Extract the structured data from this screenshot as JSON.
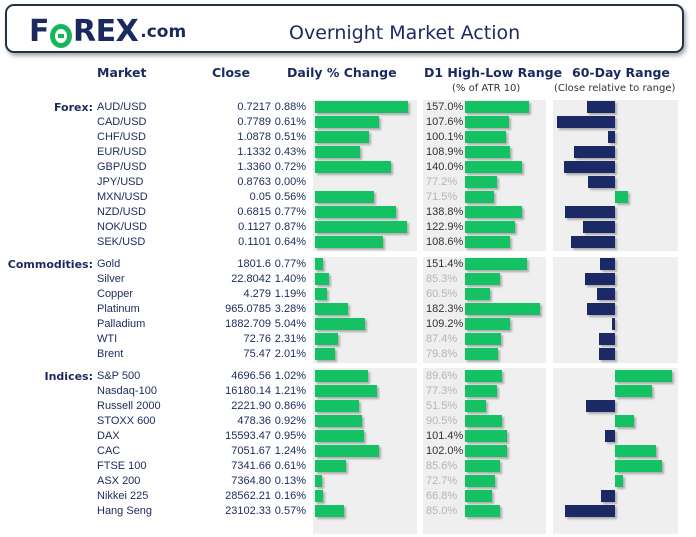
{
  "header": {
    "logo_text": "FOREX.com",
    "logo_main_f": "F",
    "logo_main_rest": "REX",
    "logo_suffix": ".com",
    "title": "Overnight Market Action"
  },
  "columns": {
    "market": "Market",
    "close": "Close",
    "daily": "Daily % Change",
    "d1": "D1 High-Low Range",
    "d1_sub": "(% of ATR 10)",
    "range60": "60-Day Range",
    "range60_sub": "(Close relative to range)"
  },
  "colors": {
    "green": "#14c163",
    "navy": "#1b2a64",
    "panel": "#efefef",
    "title": "#1b2a5e"
  },
  "sections": [
    {
      "label": "Forex:",
      "daily_scale_max": 0.88,
      "rows": [
        {
          "market": "AUD/USD",
          "close": "0.7217",
          "daily": "0.88%",
          "daily_value": 0.88,
          "d1": "157.0%",
          "d1_value": 157.0,
          "range60": -0.47
        },
        {
          "market": "CAD/USD",
          "close": "0.7789",
          "daily": "0.61%",
          "daily_value": 0.61,
          "d1": "107.6%",
          "d1_value": 107.6,
          "range60": -0.97
        },
        {
          "market": "CHF/USD",
          "close": "1.0878",
          "daily": "0.51%",
          "daily_value": 0.51,
          "d1": "100.1%",
          "d1_value": 100.1,
          "range60": -0.12
        },
        {
          "market": "EUR/USD",
          "close": "1.1332",
          "daily": "0.43%",
          "daily_value": 0.43,
          "d1": "108.9%",
          "d1_value": 108.9,
          "range60": -0.68
        },
        {
          "market": "GBP/USD",
          "close": "1.3360",
          "daily": "0.72%",
          "daily_value": 0.72,
          "d1": "140.0%",
          "d1_value": 140.0,
          "range60": -0.85
        },
        {
          "market": "JPY/USD",
          "close": "0.8763",
          "daily": "0.00%",
          "daily_value": 0.0,
          "d1": "77.2%",
          "d1_value": 77.2,
          "range60": -0.45
        },
        {
          "market": "MXN/USD",
          "close": "0.05",
          "daily": "0.56%",
          "daily_value": 0.56,
          "d1": "71.5%",
          "d1_value": 71.5,
          "range60": 0.22
        },
        {
          "market": "NZD/USD",
          "close": "0.6815",
          "daily": "0.77%",
          "daily_value": 0.77,
          "d1": "138.8%",
          "d1_value": 138.8,
          "range60": -0.83
        },
        {
          "market": "NOK/USD",
          "close": "0.1127",
          "daily": "0.87%",
          "daily_value": 0.87,
          "d1": "122.9%",
          "d1_value": 122.9,
          "range60": -0.53
        },
        {
          "market": "SEK/USD",
          "close": "0.1101",
          "daily": "0.64%",
          "daily_value": 0.64,
          "d1": "108.6%",
          "d1_value": 108.6,
          "range60": -0.73
        }
      ]
    },
    {
      "label": "Commodities:",
      "daily_scale_max": 5.04,
      "rows": [
        {
          "market": "Gold",
          "close": "1801.6",
          "daily": "0.77%",
          "daily_value": 0.77,
          "d1": "151.4%",
          "d1_value": 151.4,
          "range60": -0.25
        },
        {
          "market": "Silver",
          "close": "22.8042",
          "daily": "1.40%",
          "daily_value": 1.4,
          "d1": "85.3%",
          "d1_value": 85.3,
          "range60": -0.5
        },
        {
          "market": "Copper",
          "close": "4.279",
          "daily": "1.19%",
          "daily_value": 1.19,
          "d1": "60.5%",
          "d1_value": 60.5,
          "range60": -0.3
        },
        {
          "market": "Platinum",
          "close": "965.0785",
          "daily": "3.28%",
          "daily_value": 3.28,
          "d1": "182.3%",
          "d1_value": 182.3,
          "range60": -0.47
        },
        {
          "market": "Palladium",
          "close": "1882.709",
          "daily": "5.04%",
          "daily_value": 5.04,
          "d1": "109.2%",
          "d1_value": 109.2,
          "range60": -0.05
        },
        {
          "market": "WTI",
          "close": "72.76",
          "daily": "2.31%",
          "daily_value": 2.31,
          "d1": "87.4%",
          "d1_value": 87.4,
          "range60": -0.27
        },
        {
          "market": "Brent",
          "close": "75.47",
          "daily": "2.01%",
          "daily_value": 2.01,
          "d1": "79.8%",
          "d1_value": 79.8,
          "range60": -0.27
        }
      ]
    },
    {
      "label": "Indices:",
      "daily_scale_max": 1.24,
      "rows": [
        {
          "market": "S&P 500",
          "close": "4696.56",
          "daily": "1.02%",
          "daily_value": 1.02,
          "d1": "89.6%",
          "d1_value": 89.6,
          "range60": 0.95
        },
        {
          "market": "Nasdaq-100",
          "close": "16180.14",
          "daily": "1.21%",
          "daily_value": 1.21,
          "d1": "77.3%",
          "d1_value": 77.3,
          "range60": 0.62
        },
        {
          "market": "Russell 2000",
          "close": "2221.90",
          "daily": "0.86%",
          "daily_value": 0.86,
          "d1": "51.5%",
          "d1_value": 51.5,
          "range60": -0.48
        },
        {
          "market": "STOXX 600",
          "close": "478.36",
          "daily": "0.92%",
          "daily_value": 0.92,
          "d1": "90.5%",
          "d1_value": 90.5,
          "range60": 0.31
        },
        {
          "market": "DAX",
          "close": "15593.47",
          "daily": "0.95%",
          "daily_value": 0.95,
          "d1": "101.4%",
          "d1_value": 101.4,
          "range60": -0.17
        },
        {
          "market": "CAC",
          "close": "7051.67",
          "daily": "1.24%",
          "daily_value": 1.24,
          "d1": "102.0%",
          "d1_value": 102.0,
          "range60": 0.69
        },
        {
          "market": "FTSE 100",
          "close": "7341.66",
          "daily": "0.61%",
          "daily_value": 0.61,
          "d1": "85.6%",
          "d1_value": 85.6,
          "range60": 0.79
        },
        {
          "market": "ASX 200",
          "close": "7364.80",
          "daily": "0.13%",
          "daily_value": 0.13,
          "d1": "72.7%",
          "d1_value": 72.7,
          "range60": 0.13
        },
        {
          "market": "Nikkei 225",
          "close": "28562.21",
          "daily": "0.16%",
          "daily_value": 0.16,
          "d1": "66.8%",
          "d1_value": 66.8,
          "range60": -0.23
        },
        {
          "market": "Hang Seng",
          "close": "23102.33",
          "daily": "0.57%",
          "daily_value": 0.57,
          "d1": "85.0%",
          "d1_value": 85.0,
          "range60": -0.84
        }
      ]
    }
  ]
}
